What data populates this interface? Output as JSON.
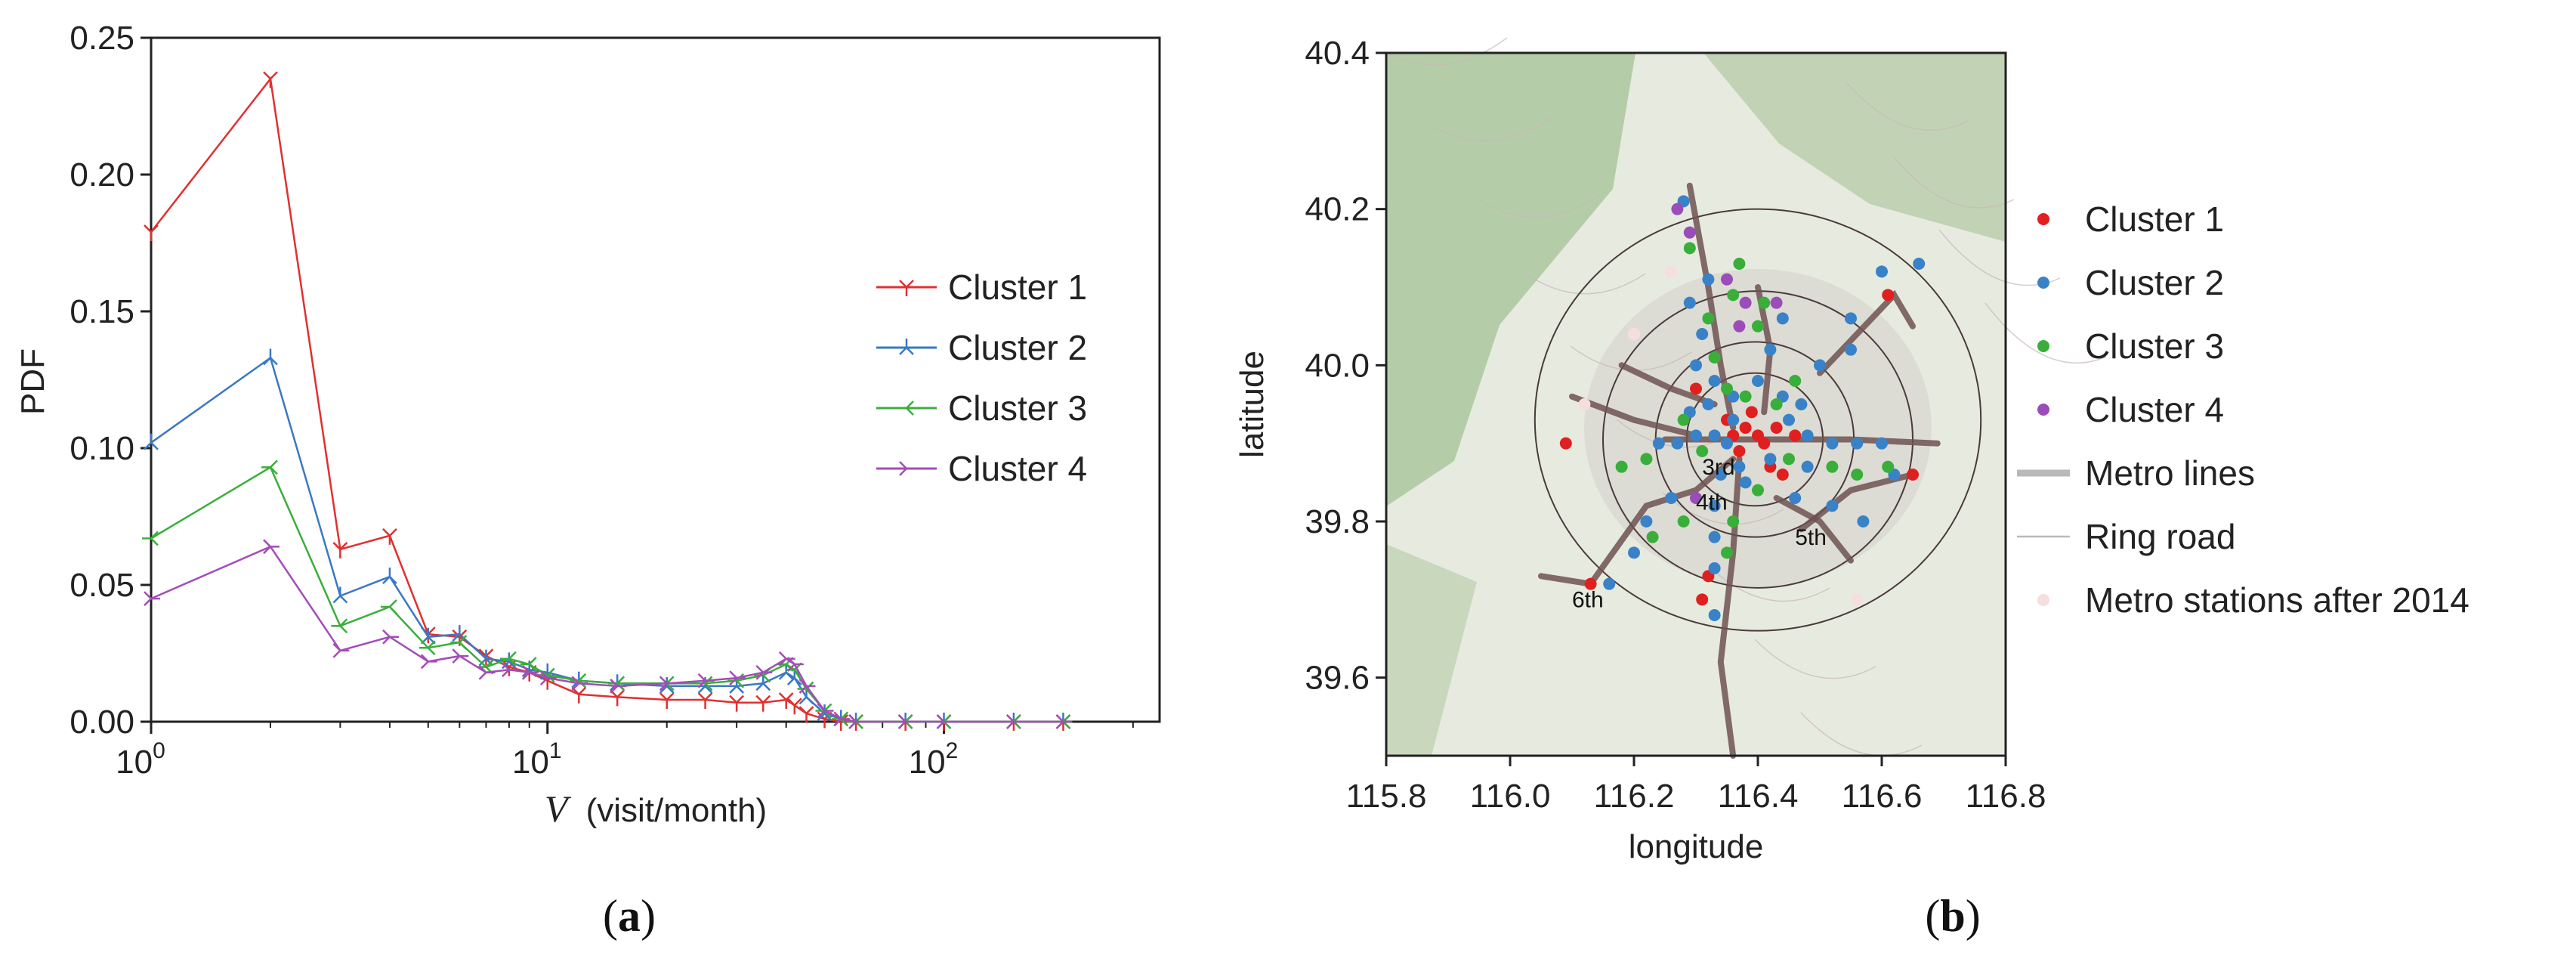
{
  "chart_data": [
    {
      "panel_label": "a",
      "type": "line",
      "xlabel_var": "V",
      "xlabel_unit": "(visit/month)",
      "ylabel": "PDF",
      "x_scale": "log",
      "xlim": [
        1,
        350
      ],
      "ylim": [
        0,
        0.25
      ],
      "y_ticks": [
        "0.00",
        "0.05",
        "0.10",
        "0.15",
        "0.20",
        "0.25"
      ],
      "x_ticks": [
        {
          "value": 1,
          "base": "10",
          "exp": "0"
        },
        {
          "value": 10,
          "base": "10",
          "exp": "1"
        },
        {
          "value": 100,
          "base": "10",
          "exp": "2"
        }
      ],
      "legend_position": "right",
      "series": [
        {
          "name": "Cluster 1",
          "color": "#e03030",
          "marker": "tri-down",
          "x": [
            1,
            2,
            3,
            4,
            5,
            6,
            7,
            8,
            9,
            10,
            12,
            15,
            20,
            25,
            30,
            35,
            40,
            42,
            45,
            50,
            55,
            60,
            80,
            100,
            150,
            200
          ],
          "y": [
            0.179,
            0.235,
            0.063,
            0.068,
            0.032,
            0.031,
            0.024,
            0.02,
            0.018,
            0.015,
            0.01,
            0.009,
            0.008,
            0.008,
            0.007,
            0.007,
            0.008,
            0.006,
            0.003,
            0.001,
            0.0,
            0.0,
            0.0,
            0.0,
            0.0,
            0.0
          ]
        },
        {
          "name": "Cluster 2",
          "color": "#3a78c4",
          "marker": "tri-up",
          "x": [
            1,
            2,
            3,
            4,
            5,
            6,
            7,
            8,
            9,
            10,
            12,
            15,
            20,
            25,
            30,
            35,
            40,
            42,
            45,
            50,
            55,
            60,
            80,
            100,
            150,
            200
          ],
          "y": [
            0.102,
            0.133,
            0.046,
            0.053,
            0.031,
            0.032,
            0.023,
            0.022,
            0.019,
            0.018,
            0.015,
            0.014,
            0.013,
            0.013,
            0.013,
            0.014,
            0.018,
            0.016,
            0.009,
            0.003,
            0.001,
            0.0,
            0.0,
            0.0,
            0.0,
            0.0
          ]
        },
        {
          "name": "Cluster 3",
          "color": "#3aae3a",
          "marker": "tri-left",
          "x": [
            1,
            2,
            3,
            4,
            5,
            6,
            7,
            8,
            9,
            10,
            12,
            15,
            20,
            25,
            30,
            35,
            40,
            42,
            45,
            50,
            55,
            60,
            80,
            100,
            150,
            200
          ],
          "y": [
            0.067,
            0.093,
            0.035,
            0.042,
            0.027,
            0.029,
            0.02,
            0.023,
            0.021,
            0.017,
            0.015,
            0.014,
            0.014,
            0.014,
            0.015,
            0.017,
            0.021,
            0.019,
            0.012,
            0.004,
            0.001,
            0.0,
            0.0,
            0.0,
            0.0,
            0.0
          ]
        },
        {
          "name": "Cluster 4",
          "color": "#a44cb8",
          "marker": "tri-right",
          "x": [
            1,
            2,
            3,
            4,
            5,
            6,
            7,
            8,
            9,
            10,
            12,
            15,
            20,
            25,
            30,
            35,
            40,
            42,
            45,
            50,
            55,
            60,
            80,
            100,
            150,
            200
          ],
          "y": [
            0.045,
            0.064,
            0.026,
            0.031,
            0.022,
            0.024,
            0.018,
            0.019,
            0.018,
            0.016,
            0.014,
            0.013,
            0.014,
            0.015,
            0.016,
            0.018,
            0.023,
            0.021,
            0.013,
            0.004,
            0.001,
            0.0,
            0.0,
            0.0,
            0.0,
            0.0
          ]
        }
      ]
    },
    {
      "panel_label": "b",
      "type": "scatter",
      "xlabel": "longitude",
      "ylabel": "latitude",
      "xlim": [
        115.8,
        116.8
      ],
      "ylim": [
        39.5,
        40.4
      ],
      "x_ticks": [
        "115.8",
        "116.0",
        "116.2",
        "116.4",
        "116.6",
        "116.8"
      ],
      "y_ticks": [
        "39.6",
        "39.8",
        "40.0",
        "40.2",
        "40.4"
      ],
      "legend_position": "right",
      "legend": [
        {
          "name": "Cluster 1",
          "kind": "dot",
          "color": "#e02020"
        },
        {
          "name": "Cluster 2",
          "kind": "dot",
          "color": "#3a82c8"
        },
        {
          "name": "Cluster 3",
          "kind": "dot",
          "color": "#3aae3a"
        },
        {
          "name": "Cluster 4",
          "kind": "dot",
          "color": "#9a4cb8"
        },
        {
          "name": "Metro lines",
          "kind": "thick-line",
          "color": "#b9b9b9"
        },
        {
          "name": "Ring road",
          "kind": "thin-line",
          "color": "#b9b9b9"
        },
        {
          "name": "Metro stations after 2014",
          "kind": "dot",
          "color": "#f6dede"
        }
      ],
      "ring_labels": [
        {
          "text": "3rd",
          "lon": 116.31,
          "lat": 39.86
        },
        {
          "text": "4th",
          "lon": 116.3,
          "lat": 39.815
        },
        {
          "text": "5th",
          "lon": 116.46,
          "lat": 39.77
        },
        {
          "text": "6th",
          "lon": 116.1,
          "lat": 39.69
        }
      ],
      "rings": [
        {
          "center": [
            116.395,
            39.905
          ],
          "rx": 0.11,
          "ry": 0.085
        },
        {
          "center": [
            116.395,
            39.905
          ],
          "rx": 0.16,
          "ry": 0.125
        },
        {
          "center": [
            116.4,
            39.905
          ],
          "rx": 0.25,
          "ry": 0.19
        },
        {
          "center": [
            116.4,
            39.93
          ],
          "rx": 0.36,
          "ry": 0.27
        }
      ],
      "metro_lines": [
        [
          [
            116.05,
            39.73
          ],
          [
            116.13,
            39.72
          ],
          [
            116.22,
            39.82
          ],
          [
            116.3,
            39.84
          ],
          [
            116.36,
            39.88
          ]
        ],
        [
          [
            116.36,
            39.5
          ],
          [
            116.34,
            39.62
          ],
          [
            116.36,
            39.76
          ],
          [
            116.37,
            39.88
          ]
        ],
        [
          [
            116.25,
            39.905
          ],
          [
            116.4,
            39.905
          ],
          [
            116.55,
            39.905
          ],
          [
            116.69,
            39.9
          ]
        ],
        [
          [
            116.29,
            40.23
          ],
          [
            116.32,
            40.1
          ],
          [
            116.34,
            40.0
          ],
          [
            116.36,
            39.92
          ]
        ],
        [
          [
            116.4,
            40.1
          ],
          [
            116.42,
            40.02
          ],
          [
            116.41,
            39.94
          ]
        ],
        [
          [
            116.5,
            39.99
          ],
          [
            116.62,
            40.09
          ],
          [
            116.65,
            40.05
          ]
        ],
        [
          [
            116.47,
            39.79
          ],
          [
            116.55,
            39.84
          ],
          [
            116.65,
            39.86
          ]
        ],
        [
          [
            116.43,
            39.83
          ],
          [
            116.5,
            39.8
          ],
          [
            116.55,
            39.75
          ]
        ],
        [
          [
            116.18,
            40.0
          ],
          [
            116.26,
            39.97
          ],
          [
            116.33,
            39.95
          ]
        ],
        [
          [
            116.1,
            39.96
          ],
          [
            116.2,
            39.93
          ],
          [
            116.3,
            39.91
          ]
        ]
      ],
      "points": {
        "Cluster 1": [
          [
            116.4,
            39.91
          ],
          [
            116.38,
            39.92
          ],
          [
            116.41,
            39.9
          ],
          [
            116.37,
            39.89
          ],
          [
            116.36,
            39.91
          ],
          [
            116.39,
            39.94
          ],
          [
            116.43,
            39.92
          ],
          [
            116.35,
            39.93
          ],
          [
            116.42,
            39.87
          ],
          [
            116.46,
            39.91
          ],
          [
            116.3,
            39.97
          ],
          [
            116.61,
            40.09
          ],
          [
            116.65,
            39.86
          ],
          [
            116.13,
            39.72
          ],
          [
            116.09,
            39.9
          ],
          [
            116.32,
            39.73
          ],
          [
            116.31,
            39.7
          ],
          [
            116.44,
            39.86
          ]
        ],
        "Cluster 2": [
          [
            116.24,
            39.9
          ],
          [
            116.27,
            39.9
          ],
          [
            116.3,
            39.91
          ],
          [
            116.33,
            39.91
          ],
          [
            116.36,
            39.93
          ],
          [
            116.45,
            39.93
          ],
          [
            116.48,
            39.91
          ],
          [
            116.52,
            39.9
          ],
          [
            116.56,
            39.9
          ],
          [
            116.6,
            39.9
          ],
          [
            116.3,
            40.0
          ],
          [
            116.31,
            40.04
          ],
          [
            116.29,
            40.08
          ],
          [
            116.28,
            40.21
          ],
          [
            116.33,
            39.98
          ],
          [
            116.4,
            39.98
          ],
          [
            116.42,
            40.02
          ],
          [
            116.44,
            40.06
          ],
          [
            116.5,
            40.0
          ],
          [
            116.55,
            40.06
          ],
          [
            116.6,
            40.12
          ],
          [
            116.66,
            40.13
          ],
          [
            116.34,
            39.86
          ],
          [
            116.33,
            39.82
          ],
          [
            116.33,
            39.78
          ],
          [
            116.33,
            39.74
          ],
          [
            116.33,
            39.68
          ],
          [
            116.26,
            39.83
          ],
          [
            116.22,
            39.8
          ],
          [
            116.2,
            39.76
          ],
          [
            116.16,
            39.72
          ],
          [
            116.46,
            39.83
          ],
          [
            116.52,
            39.82
          ],
          [
            116.57,
            39.8
          ],
          [
            116.62,
            39.86
          ],
          [
            116.32,
            39.95
          ],
          [
            116.36,
            39.96
          ],
          [
            116.44,
            39.96
          ],
          [
            116.47,
            39.95
          ],
          [
            116.37,
            39.87
          ],
          [
            116.42,
            39.88
          ],
          [
            116.35,
            39.9
          ],
          [
            116.38,
            39.85
          ],
          [
            116.29,
            39.94
          ],
          [
            116.48,
            39.87
          ],
          [
            116.32,
            40.11
          ],
          [
            116.55,
            40.02
          ]
        ],
        "Cluster 3": [
          [
            116.37,
            40.13
          ],
          [
            116.36,
            40.09
          ],
          [
            116.4,
            40.05
          ],
          [
            116.41,
            40.08
          ],
          [
            116.32,
            40.06
          ],
          [
            116.33,
            40.01
          ],
          [
            116.35,
            39.97
          ],
          [
            116.38,
            39.96
          ],
          [
            116.46,
            39.98
          ],
          [
            116.52,
            39.87
          ],
          [
            116.56,
            39.86
          ],
          [
            116.61,
            39.87
          ],
          [
            116.45,
            39.88
          ],
          [
            116.28,
            39.93
          ],
          [
            116.22,
            39.88
          ],
          [
            116.18,
            39.87
          ],
          [
            116.28,
            39.8
          ],
          [
            116.23,
            39.78
          ],
          [
            116.36,
            39.8
          ],
          [
            116.35,
            39.76
          ],
          [
            116.4,
            39.84
          ],
          [
            116.31,
            39.89
          ],
          [
            116.43,
            39.95
          ],
          [
            116.29,
            40.15
          ]
        ],
        "Cluster 4": [
          [
            116.27,
            40.2
          ],
          [
            116.29,
            40.17
          ],
          [
            116.35,
            40.11
          ],
          [
            116.38,
            40.08
          ],
          [
            116.37,
            40.05
          ],
          [
            116.43,
            40.08
          ],
          [
            116.3,
            39.83
          ]
        ],
        "Metro stations after 2014": [
          [
            116.2,
            40.04
          ],
          [
            116.26,
            40.12
          ],
          [
            116.56,
            39.7
          ],
          [
            116.12,
            39.95
          ]
        ]
      }
    }
  ]
}
